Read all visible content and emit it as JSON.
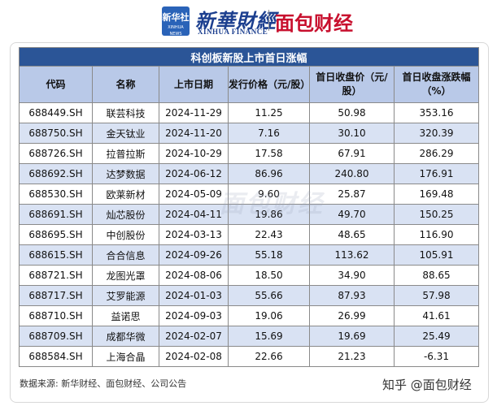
{
  "header": {
    "logo_line1": "新华社",
    "logo_line2": "XINHUA NEWS",
    "brand_cn": "新華財經",
    "brand_en": "XINHUA FINANCE",
    "brand2": "面包财经"
  },
  "table": {
    "title": "科创板新股上市首日涨幅",
    "headers": [
      "代码",
      "名称",
      "上市日期",
      "发行价格（元/股）",
      "首日收盘价（元/股）",
      "首日收盘涨跌幅（%）"
    ],
    "rows": [
      [
        "688449.SH",
        "联芸科技",
        "2024-11-29",
        "11.25",
        "50.98",
        "353.16"
      ],
      [
        "688750.SH",
        "金天钛业",
        "2024-11-20",
        "7.16",
        "30.10",
        "320.39"
      ],
      [
        "688726.SH",
        "拉普拉斯",
        "2024-10-29",
        "17.58",
        "67.91",
        "286.29"
      ],
      [
        "688692.SH",
        "达梦数据",
        "2024-06-12",
        "86.96",
        "240.80",
        "176.91"
      ],
      [
        "688530.SH",
        "欧莱新材",
        "2024-05-09",
        "9.60",
        "25.87",
        "169.48"
      ],
      [
        "688691.SH",
        "灿芯股份",
        "2024-04-11",
        "19.86",
        "49.70",
        "150.25"
      ],
      [
        "688695.SH",
        "中创股份",
        "2024-03-13",
        "22.43",
        "48.65",
        "116.90"
      ],
      [
        "688615.SH",
        "合合信息",
        "2024-09-26",
        "55.18",
        "113.62",
        "105.91"
      ],
      [
        "688721.SH",
        "龙图光罩",
        "2024-08-06",
        "18.50",
        "34.90",
        "88.65"
      ],
      [
        "688717.SH",
        "艾罗能源",
        "2024-01-03",
        "55.66",
        "87.93",
        "57.98"
      ],
      [
        "688710.SH",
        "益诺思",
        "2024-09-03",
        "19.06",
        "26.99",
        "41.61"
      ],
      [
        "688709.SH",
        "成都华微",
        "2024-02-07",
        "15.69",
        "19.69",
        "25.49"
      ],
      [
        "688584.SH",
        "上海合晶",
        "2024-02-08",
        "22.66",
        "21.23",
        "-6.31"
      ]
    ]
  },
  "footer": {
    "source": "数据来源: 新华财经、面包财经、公司公告",
    "watermark": "知乎 @面包财经"
  },
  "center_watermark": "面包财经",
  "colors": {
    "title_bg": "#2b5597",
    "header_bg": "#b9c9e8",
    "stripe_bg": "#d9e2f3",
    "brand_blue": "#1c3f8f",
    "brand_red": "#c8102e"
  }
}
